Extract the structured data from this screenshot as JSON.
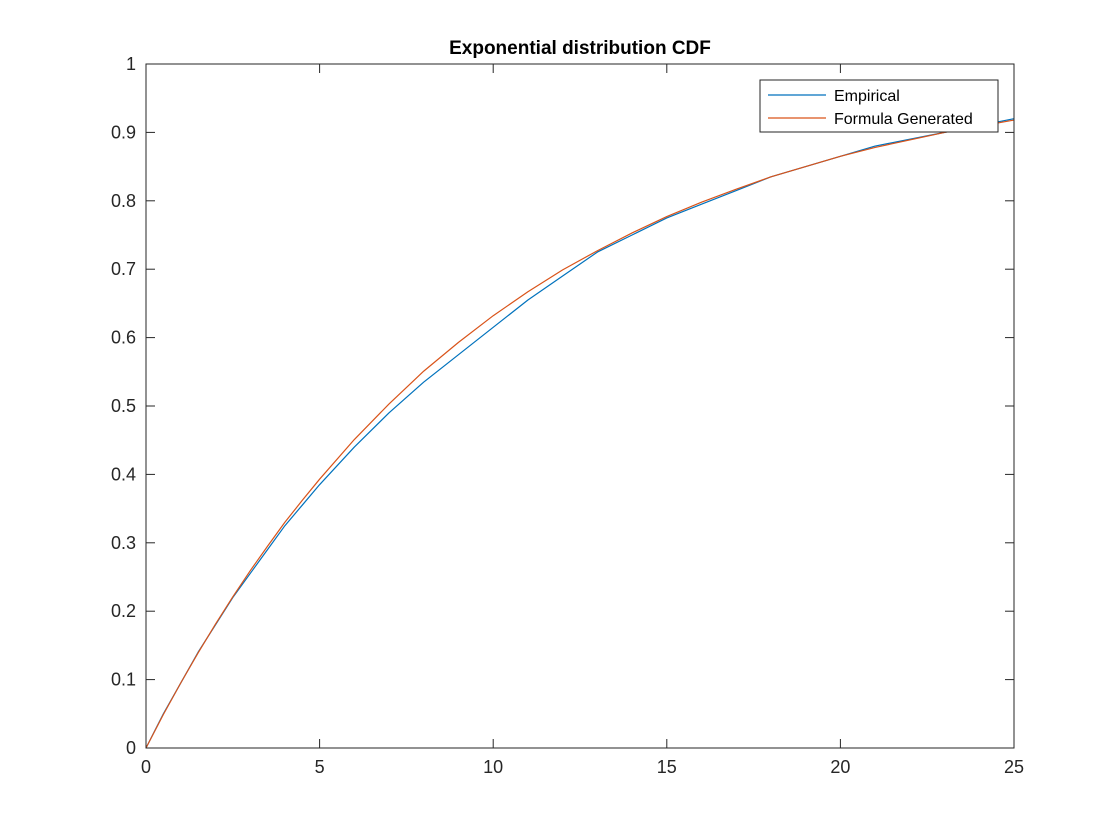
{
  "chart_data": {
    "type": "line",
    "title": "Exponential distribution CDF",
    "xlabel": "",
    "ylabel": "",
    "xlim": [
      0,
      25
    ],
    "ylim": [
      0,
      1
    ],
    "xticks": [
      0,
      5,
      10,
      15,
      20,
      25
    ],
    "yticks": [
      0,
      0.1,
      0.2,
      0.3,
      0.4,
      0.5,
      0.6,
      0.7,
      0.8,
      0.9,
      1
    ],
    "xtick_labels": [
      "0",
      "5",
      "10",
      "15",
      "20",
      "25"
    ],
    "ytick_labels": [
      "0",
      "0.1",
      "0.2",
      "0.3",
      "0.4",
      "0.5",
      "0.6",
      "0.7",
      "0.8",
      "0.9",
      "1"
    ],
    "grid": false,
    "legend_position": "top-right",
    "series": [
      {
        "name": "Empirical",
        "color": "#0072BD",
        "x": [
          0,
          0.5,
          1,
          1.5,
          2,
          2.5,
          3,
          3.5,
          4,
          4.5,
          5,
          6,
          7,
          8,
          9,
          10,
          11,
          12,
          13,
          14,
          15,
          16,
          17,
          18,
          19,
          20,
          21,
          22,
          23,
          24,
          25
        ],
        "y": [
          0,
          0.05,
          0.095,
          0.14,
          0.18,
          0.22,
          0.255,
          0.29,
          0.325,
          0.355,
          0.385,
          0.44,
          0.49,
          0.535,
          0.575,
          0.615,
          0.655,
          0.69,
          0.725,
          0.75,
          0.775,
          0.795,
          0.815,
          0.835,
          0.85,
          0.865,
          0.88,
          0.89,
          0.9,
          0.91,
          0.92
        ]
      },
      {
        "name": "Formula Generated",
        "color": "#D95319",
        "x": [
          0,
          0.5,
          1,
          1.5,
          2,
          2.5,
          3,
          3.5,
          4,
          4.5,
          5,
          6,
          7,
          8,
          9,
          10,
          11,
          12,
          13,
          14,
          15,
          16,
          17,
          18,
          19,
          20,
          21,
          22,
          23,
          24,
          25
        ],
        "y": [
          0,
          0.049,
          0.095,
          0.139,
          0.181,
          0.221,
          0.259,
          0.295,
          0.33,
          0.362,
          0.393,
          0.451,
          0.503,
          0.551,
          0.593,
          0.632,
          0.667,
          0.699,
          0.727,
          0.753,
          0.777,
          0.798,
          0.817,
          0.835,
          0.85,
          0.865,
          0.878,
          0.889,
          0.9,
          0.909,
          0.918
        ]
      }
    ]
  }
}
